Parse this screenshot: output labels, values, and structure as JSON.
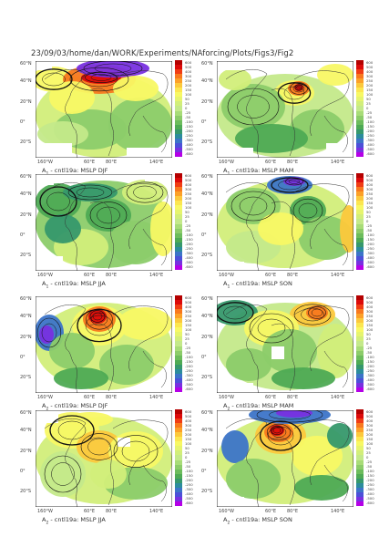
{
  "path_label": "23/09/03/home/dan/WORK/Experiments/NAforcing/Plots/Figs3/Fig2",
  "lat_labels": [
    "60°N",
    "40°N",
    "20°N",
    "0°",
    "20°S"
  ],
  "lon_labels": [
    "160°W",
    "60°E",
    "80°E",
    "140°E"
  ],
  "colorbar_labels": [
    "600",
    "500",
    "400",
    "300",
    "250",
    "200",
    "150",
    "100",
    "50",
    "25",
    "0",
    "-25",
    "-50",
    "-100",
    "-150",
    "-200",
    "-250",
    "-300",
    "-400",
    "-500",
    "-600"
  ],
  "colorbar_colors": [
    "#b40000",
    "#dc0a0a",
    "#f03c14",
    "#f8781e",
    "#fca028",
    "#fcc83c",
    "#fce650",
    "#f8f864",
    "#e6f46e",
    "#d2ee7a",
    "#c4e98a",
    "#a8dc78",
    "#8ccc6a",
    "#6cbc5c",
    "#4eaa54",
    "#36986c",
    "#2c8c9c",
    "#3c74c8",
    "#4c50d8",
    "#7830e0",
    "#b400e6"
  ],
  "panels": [
    {
      "sub": "1",
      "title": "A  - cntl19a: MSLP DJF"
    },
    {
      "sub": "1",
      "title": "A  - cntl19a: MSLP MAM"
    },
    {
      "sub": "1",
      "title": "A  - cntl19a: MSLP JJA"
    },
    {
      "sub": "1",
      "title": "A  - cntl19a: MSLP SON"
    },
    {
      "sub": "2",
      "title": "A  - cntl19a: MSLP DJF"
    },
    {
      "sub": "2",
      "title": "A  - cntl19a: MSLP MAM"
    },
    {
      "sub": "2",
      "title": "A  - cntl19a: MSLP JJA"
    },
    {
      "sub": "2",
      "title": "A  - cntl19a: MSLP SON"
    }
  ]
}
